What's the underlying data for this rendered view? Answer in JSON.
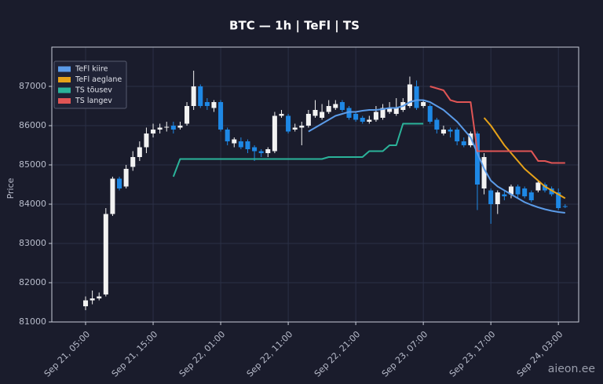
{
  "chart_data": {
    "type": "candlestick",
    "title": "BTC — 1h  |  TeFl  |  TS",
    "ylabel": "Price",
    "watermark": "aieon.ee",
    "x": [
      "Sep 21, 05:00",
      "Sep 21, 06:00",
      "Sep 21, 07:00",
      "Sep 21, 08:00",
      "Sep 21, 09:00",
      "Sep 21, 10:00",
      "Sep 21, 11:00",
      "Sep 21, 12:00",
      "Sep 21, 13:00",
      "Sep 21, 14:00",
      "Sep 21, 15:00",
      "Sep 21, 16:00",
      "Sep 21, 17:00",
      "Sep 21, 18:00",
      "Sep 21, 19:00",
      "Sep 21, 20:00",
      "Sep 21, 21:00",
      "Sep 21, 22:00",
      "Sep 21, 23:00",
      "Sep 22, 00:00",
      "Sep 22, 01:00",
      "Sep 22, 02:00",
      "Sep 22, 03:00",
      "Sep 22, 04:00",
      "Sep 22, 05:00",
      "Sep 22, 06:00",
      "Sep 22, 07:00",
      "Sep 22, 08:00",
      "Sep 22, 09:00",
      "Sep 22, 10:00",
      "Sep 22, 11:00",
      "Sep 22, 12:00",
      "Sep 22, 13:00",
      "Sep 22, 14:00",
      "Sep 22, 15:00",
      "Sep 22, 16:00",
      "Sep 22, 17:00",
      "Sep 22, 18:00",
      "Sep 22, 19:00",
      "Sep 22, 20:00",
      "Sep 22, 21:00",
      "Sep 22, 22:00",
      "Sep 22, 23:00",
      "Sep 23, 00:00",
      "Sep 23, 01:00",
      "Sep 23, 02:00",
      "Sep 23, 03:00",
      "Sep 23, 04:00",
      "Sep 23, 05:00",
      "Sep 23, 06:00",
      "Sep 23, 07:00",
      "Sep 23, 08:00",
      "Sep 23, 09:00",
      "Sep 23, 10:00",
      "Sep 23, 11:00",
      "Sep 23, 12:00",
      "Sep 23, 13:00",
      "Sep 23, 14:00",
      "Sep 23, 15:00",
      "Sep 23, 16:00",
      "Sep 23, 17:00",
      "Sep 23, 18:00",
      "Sep 23, 19:00",
      "Sep 23, 20:00",
      "Sep 23, 21:00",
      "Sep 23, 22:00",
      "Sep 23, 23:00",
      "Sep 24, 00:00",
      "Sep 24, 01:00",
      "Sep 24, 02:00",
      "Sep 24, 03:00",
      "Sep 24, 04:00"
    ],
    "open": [
      81400,
      81550,
      81600,
      81700,
      83750,
      84650,
      84450,
      84950,
      85200,
      85450,
      85800,
      85900,
      85950,
      86000,
      85950,
      86050,
      86500,
      87000,
      86600,
      86450,
      86600,
      85900,
      85550,
      85600,
      85600,
      85450,
      85350,
      85300,
      85350,
      86250,
      86250,
      85900,
      85950,
      86000,
      86250,
      86200,
      86350,
      86450,
      86600,
      86450,
      86300,
      86200,
      86100,
      86150,
      86200,
      86350,
      86300,
      86400,
      86500,
      87000,
      86500,
      86500,
      86150,
      85800,
      85900,
      85900,
      85600,
      85500,
      85800,
      84400,
      84350,
      84000,
      84250,
      84250,
      84450,
      84400,
      84300,
      84350,
      84500,
      84400,
      84300,
      83950
    ],
    "high": [
      81650,
      81800,
      81750,
      83900,
      84700,
      84700,
      85000,
      85350,
      85600,
      85950,
      86050,
      86050,
      86100,
      86100,
      86100,
      86600,
      87400,
      87050,
      86700,
      86650,
      86650,
      85950,
      85700,
      85700,
      85650,
      85500,
      85400,
      85450,
      86350,
      86400,
      86300,
      86050,
      86100,
      86400,
      86650,
      86550,
      86650,
      86650,
      86650,
      86500,
      86350,
      86250,
      86250,
      86500,
      86550,
      86600,
      86700,
      86700,
      87250,
      87150,
      86650,
      86550,
      86200,
      86000,
      85950,
      85950,
      85700,
      85850,
      85850,
      85300,
      84400,
      84350,
      84350,
      84500,
      84500,
      84450,
      84350,
      84600,
      84550,
      84450,
      84400,
      84000
    ],
    "low": [
      81300,
      81450,
      81550,
      81650,
      83700,
      84350,
      84400,
      84850,
      85100,
      85300,
      85700,
      85800,
      85850,
      85800,
      85900,
      86000,
      86400,
      86450,
      86400,
      86350,
      85850,
      85500,
      85450,
      85400,
      85300,
      85100,
      85200,
      85200,
      85300,
      86200,
      85800,
      85850,
      85500,
      85950,
      86200,
      86150,
      86300,
      86400,
      86350,
      86150,
      86100,
      86050,
      86050,
      86100,
      86150,
      86300,
      86250,
      86350,
      86450,
      86400,
      86450,
      86050,
      85800,
      85750,
      85700,
      85500,
      85450,
      85450,
      83850,
      84250,
      83500,
      83750,
      84100,
      84150,
      84150,
      84150,
      84050,
      84300,
      84300,
      84200,
      83850,
      83900
    ],
    "close": [
      81550,
      81600,
      81650,
      83750,
      84650,
      84400,
      84900,
      85200,
      85450,
      85800,
      85900,
      85950,
      85970,
      85900,
      86000,
      86500,
      87000,
      86500,
      86500,
      86600,
      85900,
      85600,
      85650,
      85450,
      85400,
      85350,
      85300,
      85400,
      86250,
      86300,
      85850,
      85950,
      86000,
      86300,
      86400,
      86350,
      86500,
      86550,
      86400,
      86200,
      86150,
      86100,
      86150,
      86350,
      86450,
      86450,
      86450,
      86600,
      87050,
      86450,
      86600,
      86100,
      85900,
      85900,
      85850,
      85600,
      85500,
      85800,
      84500,
      85200,
      84000,
      84300,
      84200,
      84450,
      84250,
      84200,
      84100,
      84550,
      84350,
      84250,
      83900,
      83930
    ],
    "up_color": "#f2f2f2",
    "down_color": "#1e88e5",
    "series": [
      {
        "name": "TeFl kiire",
        "color": "#5b9be8",
        "values": [
          null,
          null,
          null,
          null,
          null,
          null,
          null,
          null,
          null,
          null,
          null,
          null,
          null,
          null,
          null,
          null,
          null,
          null,
          null,
          null,
          null,
          null,
          null,
          null,
          null,
          null,
          null,
          null,
          null,
          null,
          null,
          null,
          null,
          85850,
          85950,
          86050,
          86150,
          86250,
          86300,
          86350,
          86350,
          86380,
          86400,
          86400,
          86420,
          86450,
          86450,
          86500,
          86600,
          86650,
          86650,
          86600,
          86500,
          86400,
          86250,
          86100,
          85900,
          85700,
          85300,
          84900,
          84600,
          84450,
          84350,
          84250,
          84150,
          84050,
          83980,
          83920,
          83870,
          83830,
          83800,
          83780
        ]
      },
      {
        "name": "TeFl aeglane",
        "color": "#e6a219",
        "values": [
          null,
          null,
          null,
          null,
          null,
          null,
          null,
          null,
          null,
          null,
          null,
          null,
          null,
          null,
          null,
          null,
          null,
          null,
          null,
          null,
          null,
          null,
          null,
          null,
          null,
          null,
          null,
          null,
          null,
          null,
          null,
          null,
          null,
          null,
          null,
          null,
          null,
          null,
          null,
          null,
          null,
          null,
          null,
          null,
          null,
          null,
          null,
          null,
          null,
          null,
          null,
          null,
          null,
          null,
          null,
          null,
          null,
          null,
          null,
          86200,
          86000,
          85750,
          85500,
          85300,
          85100,
          84900,
          84750,
          84600,
          84450,
          84350,
          84250,
          84150
        ]
      },
      {
        "name": "TS tõusev",
        "color": "#2bb39a",
        "values": [
          null,
          null,
          null,
          null,
          null,
          null,
          null,
          null,
          null,
          null,
          null,
          null,
          null,
          84700,
          85150,
          85150,
          85150,
          85150,
          85150,
          85150,
          85150,
          85150,
          85150,
          85150,
          85150,
          85150,
          85150,
          85150,
          85150,
          85150,
          85150,
          85150,
          85150,
          85150,
          85150,
          85150,
          85200,
          85200,
          85200,
          85200,
          85200,
          85200,
          85350,
          85350,
          85350,
          85500,
          85500,
          86050,
          86050,
          86050,
          86050,
          null,
          null,
          null,
          null,
          null,
          null,
          null,
          null,
          null,
          null,
          null,
          null,
          null,
          null,
          null,
          null,
          null,
          null,
          null,
          null,
          null
        ]
      },
      {
        "name": "TS langev",
        "color": "#e05555",
        "values": [
          null,
          null,
          null,
          null,
          null,
          null,
          null,
          null,
          null,
          null,
          null,
          null,
          null,
          null,
          null,
          null,
          null,
          null,
          null,
          null,
          null,
          null,
          null,
          null,
          null,
          null,
          null,
          null,
          null,
          null,
          null,
          null,
          null,
          null,
          null,
          null,
          null,
          null,
          null,
          null,
          null,
          null,
          null,
          null,
          null,
          null,
          null,
          null,
          null,
          null,
          null,
          87000,
          86950,
          86900,
          86650,
          86600,
          86600,
          86600,
          85350,
          85350,
          85350,
          85350,
          85350,
          85350,
          85350,
          85350,
          85350,
          85100,
          85100,
          85050,
          85050,
          85050
        ]
      }
    ],
    "xlim": [
      "Sep 21, 00:00",
      "Sep 24, 06:00"
    ],
    "xticks": [
      "Sep 21, 05:00",
      "Sep 21, 15:00",
      "Sep 22, 01:00",
      "Sep 22, 11:00",
      "Sep 22, 21:00",
      "Sep 23, 07:00",
      "Sep 23, 17:00",
      "Sep 24, 03:00"
    ],
    "ylim": [
      81000,
      88000
    ],
    "yticks": [
      81000,
      82000,
      83000,
      84000,
      85000,
      86000,
      87000
    ],
    "grid": true,
    "legend": "upper left"
  }
}
